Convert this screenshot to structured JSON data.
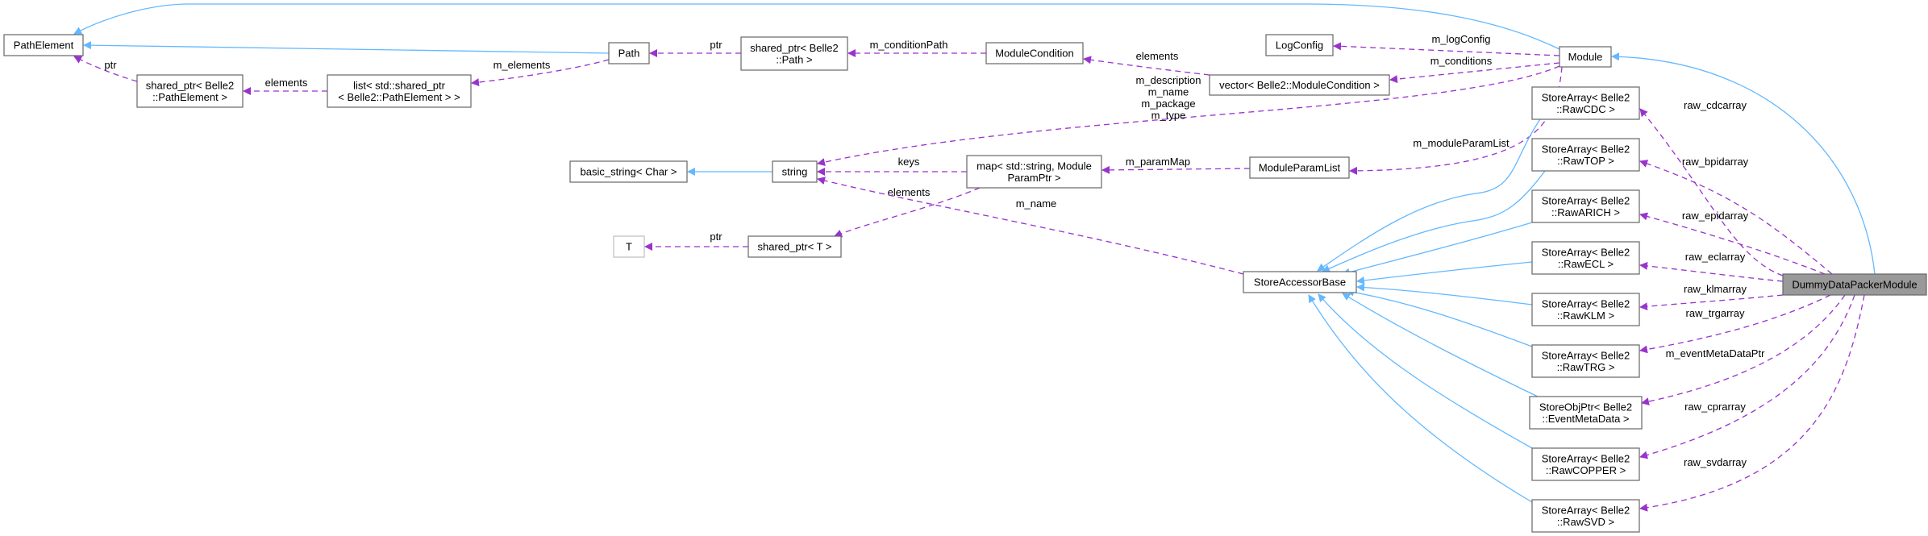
{
  "colors": {
    "inheritance": "#63b8ff",
    "usage": "#9a32cd",
    "focus_fill": "#999999",
    "border": "#666666"
  },
  "nodes": [
    {
      "id": "PathElement",
      "lines": [
        "PathElement"
      ]
    },
    {
      "id": "SharedPtrPathElement",
      "lines": [
        "shared_ptr< Belle2",
        "::PathElement >"
      ]
    },
    {
      "id": "ListSharedPtr",
      "lines": [
        "list< std::shared_ptr",
        "< Belle2::PathElement > >"
      ]
    },
    {
      "id": "Path",
      "lines": [
        "Path"
      ]
    },
    {
      "id": "SharedPtrPath",
      "lines": [
        "shared_ptr< Belle2",
        "::Path >"
      ]
    },
    {
      "id": "ModuleCondition",
      "lines": [
        "ModuleCondition"
      ]
    },
    {
      "id": "LogConfig",
      "lines": [
        "LogConfig"
      ]
    },
    {
      "id": "VectorModuleCondition",
      "lines": [
        "vector< Belle2::ModuleCondition >"
      ]
    },
    {
      "id": "Module",
      "lines": [
        "Module"
      ]
    },
    {
      "id": "BasicString",
      "lines": [
        "basic_string< Char >"
      ]
    },
    {
      "id": "String",
      "lines": [
        "string"
      ]
    },
    {
      "id": "MapParam",
      "lines": [
        "map< std::string, Module",
        "ParamPtr >"
      ]
    },
    {
      "id": "ModuleParamList",
      "lines": [
        "ModuleParamList"
      ]
    },
    {
      "id": "T",
      "lines": [
        "T"
      ]
    },
    {
      "id": "SharedPtrT",
      "lines": [
        "shared_ptr< T >"
      ]
    },
    {
      "id": "StoreAccessorBase",
      "lines": [
        "StoreAccessorBase"
      ]
    },
    {
      "id": "RawCDC",
      "lines": [
        "StoreArray< Belle2",
        "::RawCDC >"
      ]
    },
    {
      "id": "RawTOP",
      "lines": [
        "StoreArray< Belle2",
        "::RawTOP >"
      ]
    },
    {
      "id": "RawARICH",
      "lines": [
        "StoreArray< Belle2",
        "::RawARICH >"
      ]
    },
    {
      "id": "RawECL",
      "lines": [
        "StoreArray< Belle2",
        "::RawECL >"
      ]
    },
    {
      "id": "RawKLM",
      "lines": [
        "StoreArray< Belle2",
        "::RawKLM >"
      ]
    },
    {
      "id": "RawTRG",
      "lines": [
        "StoreArray< Belle2",
        "::RawTRG >"
      ]
    },
    {
      "id": "EventMetaData",
      "lines": [
        "StoreObjPtr< Belle2",
        "::EventMetaData >"
      ]
    },
    {
      "id": "RawCOPPER",
      "lines": [
        "StoreArray< Belle2",
        "::RawCOPPER >"
      ]
    },
    {
      "id": "RawSVD",
      "lines": [
        "StoreArray< Belle2",
        "::RawSVD >"
      ]
    },
    {
      "id": "DummyDataPackerModule",
      "lines": [
        "DummyDataPackerModule"
      ]
    }
  ],
  "edges": [
    {
      "from": "Module",
      "to": "PathElement",
      "kind": "inherit",
      "label": []
    },
    {
      "from": "Path",
      "to": "PathElement",
      "kind": "inherit",
      "label": []
    },
    {
      "from": "SharedPtrPathElement",
      "to": "PathElement",
      "kind": "usage",
      "label": [
        "ptr"
      ]
    },
    {
      "from": "ListSharedPtr",
      "to": "SharedPtrPathElement",
      "kind": "usage",
      "label": [
        "elements"
      ]
    },
    {
      "from": "Path",
      "to": "ListSharedPtr",
      "kind": "usage",
      "label": [
        "m_elements"
      ]
    },
    {
      "from": "SharedPtrPath",
      "to": "Path",
      "kind": "usage",
      "label": [
        "ptr"
      ]
    },
    {
      "from": "ModuleCondition",
      "to": "SharedPtrPath",
      "kind": "usage",
      "label": [
        "m_conditionPath"
      ]
    },
    {
      "from": "VectorModuleCondition",
      "to": "ModuleCondition",
      "kind": "usage",
      "label": [
        "elements"
      ]
    },
    {
      "from": "Module",
      "to": "LogConfig",
      "kind": "usage",
      "label": [
        "m_logConfig"
      ]
    },
    {
      "from": "Module",
      "to": "VectorModuleCondition",
      "kind": "usage",
      "label": [
        "m_conditions"
      ]
    },
    {
      "from": "Module",
      "to": "String",
      "kind": "usage",
      "label": [
        "m_description",
        "m_name",
        "m_package",
        "m_type"
      ]
    },
    {
      "from": "Module",
      "to": "ModuleParamList",
      "kind": "usage",
      "label": [
        "m_moduleParamList"
      ]
    },
    {
      "from": "String",
      "to": "BasicString",
      "kind": "inherit",
      "label": []
    },
    {
      "from": "MapParam",
      "to": "String",
      "kind": "usage",
      "label": [
        "keys"
      ]
    },
    {
      "from": "MapParam",
      "to": "SharedPtrT",
      "kind": "usage",
      "label": [
        "elements"
      ]
    },
    {
      "from": "ModuleParamList",
      "to": "MapParam",
      "kind": "usage",
      "label": [
        "m_paramMap"
      ]
    },
    {
      "from": "SharedPtrT",
      "to": "T",
      "kind": "usage",
      "label": [
        "ptr"
      ]
    },
    {
      "from": "StoreAccessorBase",
      "to": "String",
      "kind": "usage",
      "label": [
        "m_name"
      ]
    },
    {
      "from": "DummyDataPackerModule",
      "to": "Module",
      "kind": "inherit",
      "label": []
    },
    {
      "from": "RawCDC",
      "to": "StoreAccessorBase",
      "kind": "inherit",
      "label": []
    },
    {
      "from": "RawTOP",
      "to": "StoreAccessorBase",
      "kind": "inherit",
      "label": []
    },
    {
      "from": "RawARICH",
      "to": "StoreAccessorBase",
      "kind": "inherit",
      "label": []
    },
    {
      "from": "RawECL",
      "to": "StoreAccessorBase",
      "kind": "inherit",
      "label": []
    },
    {
      "from": "RawKLM",
      "to": "StoreAccessorBase",
      "kind": "inherit",
      "label": []
    },
    {
      "from": "RawTRG",
      "to": "StoreAccessorBase",
      "kind": "inherit",
      "label": []
    },
    {
      "from": "EventMetaData",
      "to": "StoreAccessorBase",
      "kind": "inherit",
      "label": []
    },
    {
      "from": "RawCOPPER",
      "to": "StoreAccessorBase",
      "kind": "inherit",
      "label": []
    },
    {
      "from": "RawSVD",
      "to": "StoreAccessorBase",
      "kind": "inherit",
      "label": []
    },
    {
      "from": "DummyDataPackerModule",
      "to": "RawCDC",
      "kind": "usage",
      "label": [
        "raw_cdcarray"
      ]
    },
    {
      "from": "DummyDataPackerModule",
      "to": "RawTOP",
      "kind": "usage",
      "label": [
        "raw_bpidarray"
      ]
    },
    {
      "from": "DummyDataPackerModule",
      "to": "RawARICH",
      "kind": "usage",
      "label": [
        "raw_epidarray"
      ]
    },
    {
      "from": "DummyDataPackerModule",
      "to": "RawECL",
      "kind": "usage",
      "label": [
        "raw_eclarray"
      ]
    },
    {
      "from": "DummyDataPackerModule",
      "to": "RawKLM",
      "kind": "usage",
      "label": [
        "raw_klmarray"
      ]
    },
    {
      "from": "DummyDataPackerModule",
      "to": "RawTRG",
      "kind": "usage",
      "label": [
        "raw_trgarray"
      ]
    },
    {
      "from": "DummyDataPackerModule",
      "to": "EventMetaData",
      "kind": "usage",
      "label": [
        "m_eventMetaDataPtr"
      ]
    },
    {
      "from": "DummyDataPackerModule",
      "to": "RawCOPPER",
      "kind": "usage",
      "label": [
        "raw_cprarray"
      ]
    },
    {
      "from": "DummyDataPackerModule",
      "to": "RawSVD",
      "kind": "usage",
      "label": [
        "raw_svdarray"
      ]
    }
  ]
}
